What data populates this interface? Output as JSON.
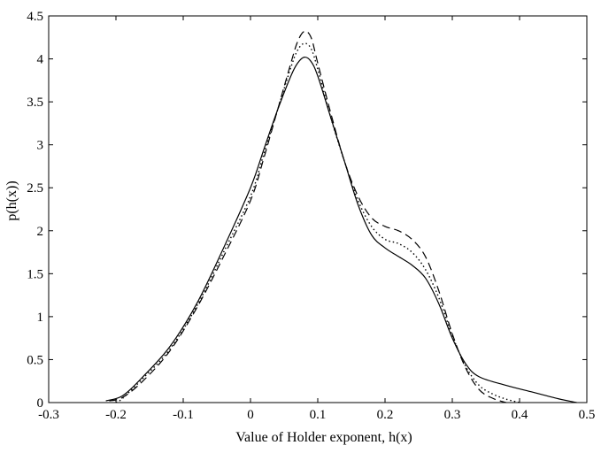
{
  "chart_data": {
    "type": "line",
    "title": "",
    "xlabel": "Value of Holder exponent, h(x)",
    "ylabel": "p(h(x))",
    "xlim": [
      -0.3,
      0.5
    ],
    "ylim": [
      0,
      4.5
    ],
    "xticks": [
      -0.3,
      -0.2,
      -0.1,
      0,
      0.1,
      0.2,
      0.3,
      0.4,
      0.5
    ],
    "xtick_labels": [
      "-0.3",
      "-0.2",
      "-0.1",
      "0",
      "0.1",
      "0.2",
      "0.3",
      "0.4",
      "0.5"
    ],
    "yticks": [
      0,
      0.5,
      1,
      1.5,
      2,
      2.5,
      3,
      3.5,
      4,
      4.5
    ],
    "ytick_labels": [
      "0",
      "0.5",
      "1",
      "1.5",
      "2",
      "2.5",
      "3",
      "3.5",
      "4",
      "4.5"
    ],
    "grid": false,
    "series": [
      {
        "line_style": "solid",
        "color": "#000000",
        "x": [
          -0.215,
          -0.19,
          -0.16,
          -0.12,
          -0.08,
          -0.04,
          0.0,
          0.02,
          0.04,
          0.06,
          0.07,
          0.08,
          0.09,
          0.1,
          0.12,
          0.14,
          0.16,
          0.18,
          0.2,
          0.22,
          0.24,
          0.26,
          0.28,
          0.3,
          0.32,
          0.34,
          0.38,
          0.42,
          0.46,
          0.485
        ],
        "y": [
          0.02,
          0.08,
          0.3,
          0.65,
          1.15,
          1.8,
          2.5,
          2.95,
          3.4,
          3.8,
          3.95,
          4.02,
          3.97,
          3.8,
          3.3,
          2.8,
          2.3,
          1.95,
          1.8,
          1.7,
          1.6,
          1.45,
          1.15,
          0.75,
          0.45,
          0.3,
          0.2,
          0.12,
          0.04,
          0.0
        ]
      },
      {
        "line_style": "dashed",
        "color": "#000000",
        "x": [
          -0.21,
          -0.19,
          -0.16,
          -0.12,
          -0.08,
          -0.04,
          0.0,
          0.02,
          0.04,
          0.06,
          0.07,
          0.08,
          0.09,
          0.1,
          0.12,
          0.14,
          0.16,
          0.18,
          0.2,
          0.22,
          0.24,
          0.26,
          0.28,
          0.3,
          0.32,
          0.34,
          0.36,
          0.38
        ],
        "y": [
          0.02,
          0.06,
          0.25,
          0.6,
          1.1,
          1.7,
          2.35,
          2.85,
          3.4,
          3.95,
          4.2,
          4.32,
          4.25,
          3.95,
          3.35,
          2.8,
          2.4,
          2.15,
          2.05,
          2.0,
          1.9,
          1.7,
          1.3,
          0.8,
          0.4,
          0.15,
          0.05,
          0.0
        ]
      },
      {
        "line_style": "dotted",
        "color": "#000000",
        "x": [
          -0.2,
          -0.19,
          -0.16,
          -0.12,
          -0.08,
          -0.04,
          0.0,
          0.02,
          0.04,
          0.06,
          0.07,
          0.08,
          0.09,
          0.1,
          0.12,
          0.14,
          0.16,
          0.18,
          0.2,
          0.22,
          0.24,
          0.26,
          0.28,
          0.3,
          0.32,
          0.34,
          0.36,
          0.38,
          0.4
        ],
        "y": [
          0.0,
          0.05,
          0.28,
          0.62,
          1.12,
          1.75,
          2.4,
          2.9,
          3.4,
          3.9,
          4.1,
          4.18,
          4.12,
          3.88,
          3.3,
          2.8,
          2.35,
          2.05,
          1.9,
          1.85,
          1.75,
          1.55,
          1.22,
          0.78,
          0.42,
          0.2,
          0.1,
          0.04,
          0.0
        ]
      }
    ]
  }
}
